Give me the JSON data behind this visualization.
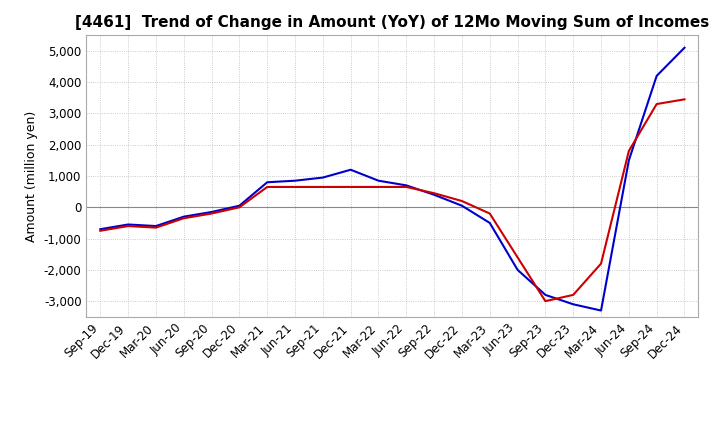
{
  "title": "[4461]  Trend of Change in Amount (YoY) of 12Mo Moving Sum of Incomes",
  "ylabel": "Amount (million yen)",
  "ylim": [
    -3500,
    5500
  ],
  "yticks": [
    -3000,
    -2000,
    -1000,
    0,
    1000,
    2000,
    3000,
    4000,
    5000
  ],
  "background_color": "#ffffff",
  "grid_color": "#bbbbbb",
  "labels": [
    "Sep-19",
    "Dec-19",
    "Mar-20",
    "Jun-20",
    "Sep-20",
    "Dec-20",
    "Mar-21",
    "Jun-21",
    "Sep-21",
    "Dec-21",
    "Mar-22",
    "Jun-22",
    "Sep-22",
    "Dec-22",
    "Mar-23",
    "Jun-23",
    "Sep-23",
    "Dec-23",
    "Mar-24",
    "Jun-24",
    "Sep-24",
    "Dec-24"
  ],
  "ordinary_income": [
    -700,
    -550,
    -600,
    -300,
    -150,
    50,
    800,
    850,
    950,
    1200,
    850,
    700,
    400,
    50,
    -500,
    -2000,
    -2800,
    -3100,
    -3300,
    1500,
    4200,
    5100
  ],
  "net_income": [
    -750,
    -600,
    -650,
    -350,
    -200,
    0,
    650,
    650,
    650,
    650,
    650,
    650,
    450,
    200,
    -200,
    -1600,
    -3000,
    -2800,
    -1800,
    1800,
    3300,
    3450
  ],
  "ordinary_color": "#0000cc",
  "net_color": "#cc0000",
  "title_fontsize": 11,
  "axis_fontsize": 9,
  "tick_fontsize": 8.5
}
